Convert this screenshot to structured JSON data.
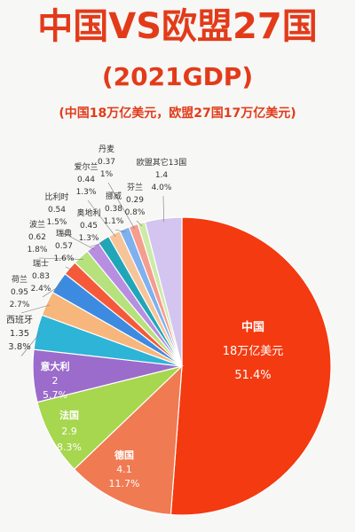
{
  "header": {
    "title": "中国VS欧盟27国",
    "subtitle": "(2021GDP)",
    "caption": "(中国18万亿美元，欧盟27国17万亿美元)"
  },
  "chart_data": {
    "type": "pie",
    "title": "中国VS欧盟27国",
    "subtitle": "(2021GDP)",
    "slices": [
      {
        "name": "中国",
        "value_text": "18万亿美元",
        "percent_text": "51.4%",
        "value": 18,
        "percent": 51.4,
        "color": "#f43a10"
      },
      {
        "name": "德国",
        "value_text": "4.1",
        "percent_text": "11.7%",
        "value": 4.1,
        "percent": 11.7,
        "color": "#f07a52"
      },
      {
        "name": "法国",
        "value_text": "2.9",
        "percent_text": "8.3%",
        "value": 2.9,
        "percent": 8.3,
        "color": "#a7d64f"
      },
      {
        "name": "意大利",
        "value_text": "2",
        "percent_text": "5.7%",
        "value": 2,
        "percent": 5.7,
        "color": "#9b6ccb"
      },
      {
        "name": "西班牙",
        "value_text": "1.35",
        "percent_text": "3.8%",
        "value": 1.35,
        "percent": 3.8,
        "color": "#2db4d6"
      },
      {
        "name": "荷兰",
        "value_text": "0.95",
        "percent_text": "2.7%",
        "value": 0.95,
        "percent": 2.7,
        "color": "#f7b67c"
      },
      {
        "name": "瑞士",
        "value_text": "0.83",
        "percent_text": "2.4%",
        "value": 0.83,
        "percent": 2.4,
        "color": "#3d8be0"
      },
      {
        "name": "瑞典",
        "value_text": "0.57",
        "percent_text": "1.6%",
        "value": 0.57,
        "percent": 1.6,
        "color": "#f45a3a"
      },
      {
        "name": "波兰",
        "value_text": "0.62",
        "percent_text": "1.8%",
        "value": 0.62,
        "percent": 1.8,
        "color": "#b6e27e"
      },
      {
        "name": "比利时",
        "value_text": "0.54",
        "percent_text": "1.5%",
        "value": 0.54,
        "percent": 1.5,
        "color": "#b78ee0"
      },
      {
        "name": "奥地利",
        "value_text": "0.45",
        "percent_text": "1.3%",
        "value": 0.45,
        "percent": 1.3,
        "color": "#21a6b8"
      },
      {
        "name": "爱尔兰",
        "value_text": "0.44",
        "percent_text": "1.3%",
        "value": 0.44,
        "percent": 1.3,
        "color": "#f7c49a"
      },
      {
        "name": "挪威",
        "value_text": "0.38",
        "percent_text": "1.1%",
        "value": 0.38,
        "percent": 1.1,
        "color": "#7fb1ef"
      },
      {
        "name": "丹麦",
        "value_text": "0.37",
        "percent_text": "1%",
        "value": 0.37,
        "percent": 1.0,
        "color": "#f59d8e"
      },
      {
        "name": "芬兰",
        "value_text": "0.29",
        "percent_text": "0.8%",
        "value": 0.29,
        "percent": 0.8,
        "color": "#cdeaa8"
      },
      {
        "name": "欧盟其它13国",
        "value_text": "1.4",
        "percent_text": "4.0%",
        "value": 1.4,
        "percent": 4.0,
        "color": "#d3c5ef"
      }
    ]
  }
}
